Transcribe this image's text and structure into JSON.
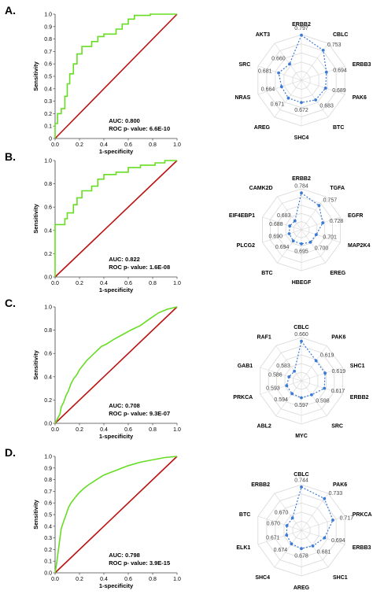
{
  "colors": {
    "roc": "#66dd22",
    "diagonal": "#bb1111",
    "radar": "#3a7ad5",
    "web": "#d8d8d8",
    "axis": "#444444"
  },
  "chart_data": [
    {
      "panel": "A.",
      "type": "line",
      "xlabel": "1-specificity",
      "ylabel": "Sensitivity",
      "xlim": [
        0,
        1
      ],
      "ylim": [
        0,
        1
      ],
      "xticks": [
        "0.0",
        "0.2",
        "0.4",
        "0.6",
        "0.8",
        "1.0"
      ],
      "yticks": [
        "0",
        "0.1",
        "0.2",
        "0.3",
        "0.4",
        "0.5",
        "0.6",
        "0.7",
        "0.8",
        "0.9",
        "1.0"
      ],
      "auc_text": "AUC: 0.800",
      "p_text": "ROC p- value: 6.6E-10",
      "roc": [
        [
          0,
          0
        ],
        [
          0,
          0.12
        ],
        [
          0.02,
          0.12
        ],
        [
          0.02,
          0.2
        ],
        [
          0.05,
          0.2
        ],
        [
          0.05,
          0.24
        ],
        [
          0.08,
          0.24
        ],
        [
          0.08,
          0.34
        ],
        [
          0.1,
          0.34
        ],
        [
          0.1,
          0.44
        ],
        [
          0.12,
          0.44
        ],
        [
          0.12,
          0.52
        ],
        [
          0.15,
          0.52
        ],
        [
          0.15,
          0.6
        ],
        [
          0.18,
          0.6
        ],
        [
          0.18,
          0.68
        ],
        [
          0.22,
          0.68
        ],
        [
          0.22,
          0.74
        ],
        [
          0.3,
          0.74
        ],
        [
          0.3,
          0.78
        ],
        [
          0.35,
          0.78
        ],
        [
          0.35,
          0.82
        ],
        [
          0.4,
          0.82
        ],
        [
          0.4,
          0.84
        ],
        [
          0.5,
          0.84
        ],
        [
          0.5,
          0.88
        ],
        [
          0.55,
          0.88
        ],
        [
          0.55,
          0.92
        ],
        [
          0.6,
          0.92
        ],
        [
          0.6,
          0.96
        ],
        [
          0.65,
          0.96
        ],
        [
          0.65,
          0.99
        ],
        [
          0.78,
          0.99
        ],
        [
          0.78,
          1.0
        ],
        [
          1.0,
          1.0
        ]
      ]
    },
    {
      "panel": "",
      "type": "radar",
      "axes": [
        "ERBB2",
        "CBLC",
        "ERBB3",
        "PAK6",
        "BTC",
        "SHC4",
        "AREG",
        "NRAS",
        "SRC",
        "AKT3"
      ],
      "values": [
        0.797,
        0.753,
        0.694,
        0.689,
        0.683,
        0.672,
        0.671,
        0.664,
        0.681,
        0.66
      ],
      "value_labels": [
        "0.797",
        "0.753",
        "0.694",
        "0.689",
        "0.683",
        "0.672",
        "0.671",
        "0.664",
        "0.681",
        "0.660"
      ],
      "range": [
        0.55,
        0.8
      ]
    },
    {
      "panel": "B.",
      "type": "line",
      "xlabel": "1-specificity",
      "ylabel": "Sensitivity",
      "xlim": [
        0,
        1
      ],
      "ylim": [
        0,
        1
      ],
      "xticks": [
        "0.0",
        "0.2",
        "0.4",
        "0.6",
        "0.8",
        "1.0"
      ],
      "yticks": [
        "0.0",
        "0.2",
        "0.4",
        "0.6",
        "0.8",
        "1.0"
      ],
      "auc_text": "AUC: 0.822",
      "p_text": "ROC p- value: 1.6E-08",
      "roc": [
        [
          0,
          0
        ],
        [
          0,
          0.45
        ],
        [
          0.08,
          0.45
        ],
        [
          0.08,
          0.5
        ],
        [
          0.1,
          0.5
        ],
        [
          0.1,
          0.55
        ],
        [
          0.15,
          0.55
        ],
        [
          0.15,
          0.62
        ],
        [
          0.18,
          0.62
        ],
        [
          0.18,
          0.68
        ],
        [
          0.22,
          0.68
        ],
        [
          0.22,
          0.74
        ],
        [
          0.3,
          0.74
        ],
        [
          0.3,
          0.78
        ],
        [
          0.35,
          0.78
        ],
        [
          0.35,
          0.84
        ],
        [
          0.4,
          0.84
        ],
        [
          0.4,
          0.88
        ],
        [
          0.5,
          0.88
        ],
        [
          0.5,
          0.9
        ],
        [
          0.6,
          0.9
        ],
        [
          0.6,
          0.94
        ],
        [
          0.7,
          0.94
        ],
        [
          0.7,
          0.96
        ],
        [
          0.82,
          0.96
        ],
        [
          0.82,
          0.98
        ],
        [
          0.9,
          0.98
        ],
        [
          0.9,
          1.0
        ],
        [
          1.0,
          1.0
        ]
      ]
    },
    {
      "panel": "",
      "type": "radar",
      "axes": [
        "ERBB2",
        "TGFA",
        "EGFR",
        "MAP2K4",
        "EREG",
        "HBEGF",
        "BTC",
        "PLCG2",
        "EIF4EBP1",
        "CAMK2D"
      ],
      "values": [
        0.784,
        0.757,
        0.728,
        0.701,
        0.7,
        0.695,
        0.694,
        0.69,
        0.688,
        0.683
      ],
      "value_labels": [
        "0.784",
        "0.757",
        "0.728",
        "0.701",
        "0.700",
        "0.695",
        "0.694",
        "0.690",
        "0.688",
        "0.683"
      ],
      "range": [
        0.64,
        0.8
      ]
    },
    {
      "panel": "C.",
      "type": "line",
      "xlabel": "1-specificity",
      "ylabel": "Sensitivity",
      "xlim": [
        0,
        1
      ],
      "ylim": [
        0,
        1
      ],
      "xticks": [
        "0.0",
        "0.2",
        "0.4",
        "0.6",
        "0.8",
        "1.0"
      ],
      "yticks": [
        "0.0",
        "0.2",
        "0.4",
        "0.6",
        "0.8",
        "1.0"
      ],
      "auc_text": "AUC: 0.708",
      "p_text": "ROC p- value: 9.3E-07",
      "roc": [
        [
          0,
          0
        ],
        [
          0.02,
          0.04
        ],
        [
          0.04,
          0.08
        ],
        [
          0.05,
          0.14
        ],
        [
          0.07,
          0.18
        ],
        [
          0.09,
          0.24
        ],
        [
          0.11,
          0.28
        ],
        [
          0.13,
          0.34
        ],
        [
          0.15,
          0.38
        ],
        [
          0.18,
          0.42
        ],
        [
          0.2,
          0.46
        ],
        [
          0.23,
          0.5
        ],
        [
          0.26,
          0.54
        ],
        [
          0.3,
          0.58
        ],
        [
          0.34,
          0.62
        ],
        [
          0.38,
          0.66
        ],
        [
          0.42,
          0.68
        ],
        [
          0.48,
          0.72
        ],
        [
          0.55,
          0.76
        ],
        [
          0.62,
          0.8
        ],
        [
          0.7,
          0.84
        ],
        [
          0.78,
          0.9
        ],
        [
          0.85,
          0.95
        ],
        [
          0.92,
          0.98
        ],
        [
          1.0,
          1.0
        ]
      ]
    },
    {
      "panel": "",
      "type": "radar",
      "axes": [
        "CBLC",
        "PAK6",
        "SHC1",
        "ERBB2",
        "SRC",
        "MYC",
        "ABL2",
        "PRKCA",
        "GAB1",
        "RAF1"
      ],
      "values": [
        0.66,
        0.619,
        0.619,
        0.617,
        0.598,
        0.597,
        0.594,
        0.593,
        0.586,
        0.583
      ],
      "value_labels": [
        "0.660",
        "0.619",
        "0.619",
        "0.617",
        "0.598",
        "0.597",
        "0.594",
        "0.593",
        "0.586",
        "0.583"
      ],
      "range": [
        0.55,
        0.67
      ]
    },
    {
      "panel": "D.",
      "type": "line",
      "xlabel": "1-specificity",
      "ylabel": "Sensitivity",
      "xlim": [
        0,
        1
      ],
      "ylim": [
        0,
        1
      ],
      "xticks": [
        "0.0",
        "0.2",
        "0.4",
        "0.6",
        "0.8",
        "1.0"
      ],
      "yticks": [
        "0.0",
        "0.1",
        "0.2",
        "0.3",
        "0.4",
        "0.5",
        "0.6",
        "0.7",
        "0.8",
        "0.9",
        "1.0"
      ],
      "auc_text": "AUC: 0.798",
      "p_text": "ROC p- value: 3.9E-15",
      "roc": [
        [
          0,
          0
        ],
        [
          0.01,
          0.06
        ],
        [
          0.02,
          0.14
        ],
        [
          0.03,
          0.22
        ],
        [
          0.04,
          0.3
        ],
        [
          0.05,
          0.38
        ],
        [
          0.07,
          0.44
        ],
        [
          0.09,
          0.5
        ],
        [
          0.11,
          0.56
        ],
        [
          0.13,
          0.6
        ],
        [
          0.16,
          0.64
        ],
        [
          0.19,
          0.68
        ],
        [
          0.23,
          0.72
        ],
        [
          0.28,
          0.76
        ],
        [
          0.34,
          0.8
        ],
        [
          0.4,
          0.84
        ],
        [
          0.5,
          0.88
        ],
        [
          0.6,
          0.92
        ],
        [
          0.7,
          0.95
        ],
        [
          0.8,
          0.97
        ],
        [
          0.9,
          0.99
        ],
        [
          1.0,
          1.0
        ]
      ]
    },
    {
      "panel": "",
      "type": "radar",
      "axes": [
        "CBLC",
        "PAK6",
        "PRKCA",
        "ERBB3",
        "SHC1",
        "AREG",
        "SHC4",
        "ELK1",
        "BTC",
        "ERBB2"
      ],
      "values": [
        0.744,
        0.733,
        0.717,
        0.694,
        0.681,
        0.678,
        0.674,
        0.671,
        0.67,
        0.67
      ],
      "value_labels": [
        "0.744",
        "0.733",
        "0.717",
        "0.694",
        "0.681",
        "0.678",
        "0.674",
        "0.671",
        "0.670",
        "0.670"
      ],
      "range": [
        0.63,
        0.75
      ]
    }
  ]
}
